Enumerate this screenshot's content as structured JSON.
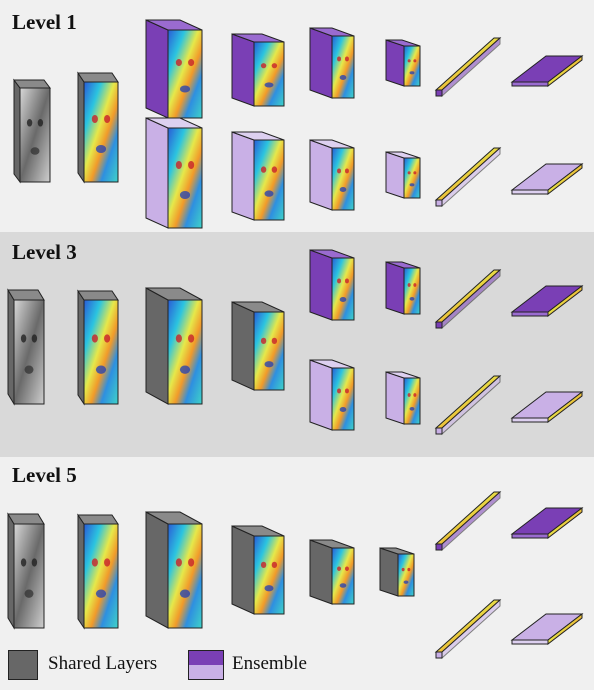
{
  "levels": [
    {
      "title": "Level 1"
    },
    {
      "title": "Level 3"
    },
    {
      "title": "Level 5"
    }
  ],
  "legend": {
    "shared_label": "Shared Layers",
    "ensemble_label": "Ensemble"
  },
  "colors": {
    "shared": "#676767",
    "ensemble_dark": "#7a3fb5",
    "ensemble_light": "#c9b0e6",
    "panel_light": "#f0f0f0",
    "panel_dark": "#d9d9d9"
  }
}
